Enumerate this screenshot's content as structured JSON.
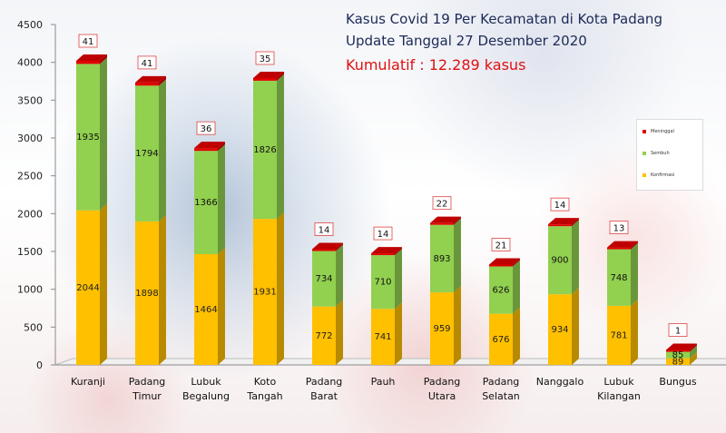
{
  "header": {
    "title_line1": "Kasus Covid 19 Per Kecamatan di Kota Padang",
    "title_line2": "Update Tanggal 27 Desember 2020",
    "cumulative": "Kumulatif : 12.289 kasus"
  },
  "colors": {
    "meninggal": "#e00000",
    "sembuh": "#92d050",
    "konfirmasi": "#ffc000",
    "title": "#1c2a57",
    "subtitle": "#e01010"
  },
  "chart_data": {
    "type": "bar",
    "stacked": true,
    "three_d": true,
    "categories": [
      [
        "Kuranji"
      ],
      [
        "Padang",
        "Timur"
      ],
      [
        "Lubuk",
        "Begalung"
      ],
      [
        "Koto",
        "Tangah"
      ],
      [
        "Padang",
        "Barat"
      ],
      [
        "Pauh"
      ],
      [
        "Padang",
        "Utara"
      ],
      [
        "Padang",
        "Selatan"
      ],
      [
        "Nanggalo"
      ],
      [
        "Lubuk",
        "Kilangan"
      ],
      [
        "Bungus"
      ]
    ],
    "series": [
      {
        "name": "Konfirmasi",
        "color": "#ffc000",
        "values": [
          2044,
          1898,
          1464,
          1931,
          772,
          741,
          959,
          676,
          934,
          781,
          89
        ]
      },
      {
        "name": "Sembuh",
        "color": "#92d050",
        "values": [
          1935,
          1794,
          1366,
          1826,
          734,
          710,
          893,
          626,
          900,
          748,
          85
        ]
      },
      {
        "name": "Meninggal",
        "color": "#e00000",
        "values": [
          41,
          41,
          36,
          35,
          14,
          14,
          22,
          21,
          14,
          13,
          1
        ]
      }
    ],
    "ylim": [
      0,
      4500
    ],
    "yticks": [
      0,
      500,
      1000,
      1500,
      2000,
      2500,
      3000,
      3500,
      4000,
      4500
    ],
    "grid": false,
    "legend_position": "right",
    "legend_order": [
      "Meninggal",
      "Sembuh",
      "Konfirmasi"
    ]
  }
}
